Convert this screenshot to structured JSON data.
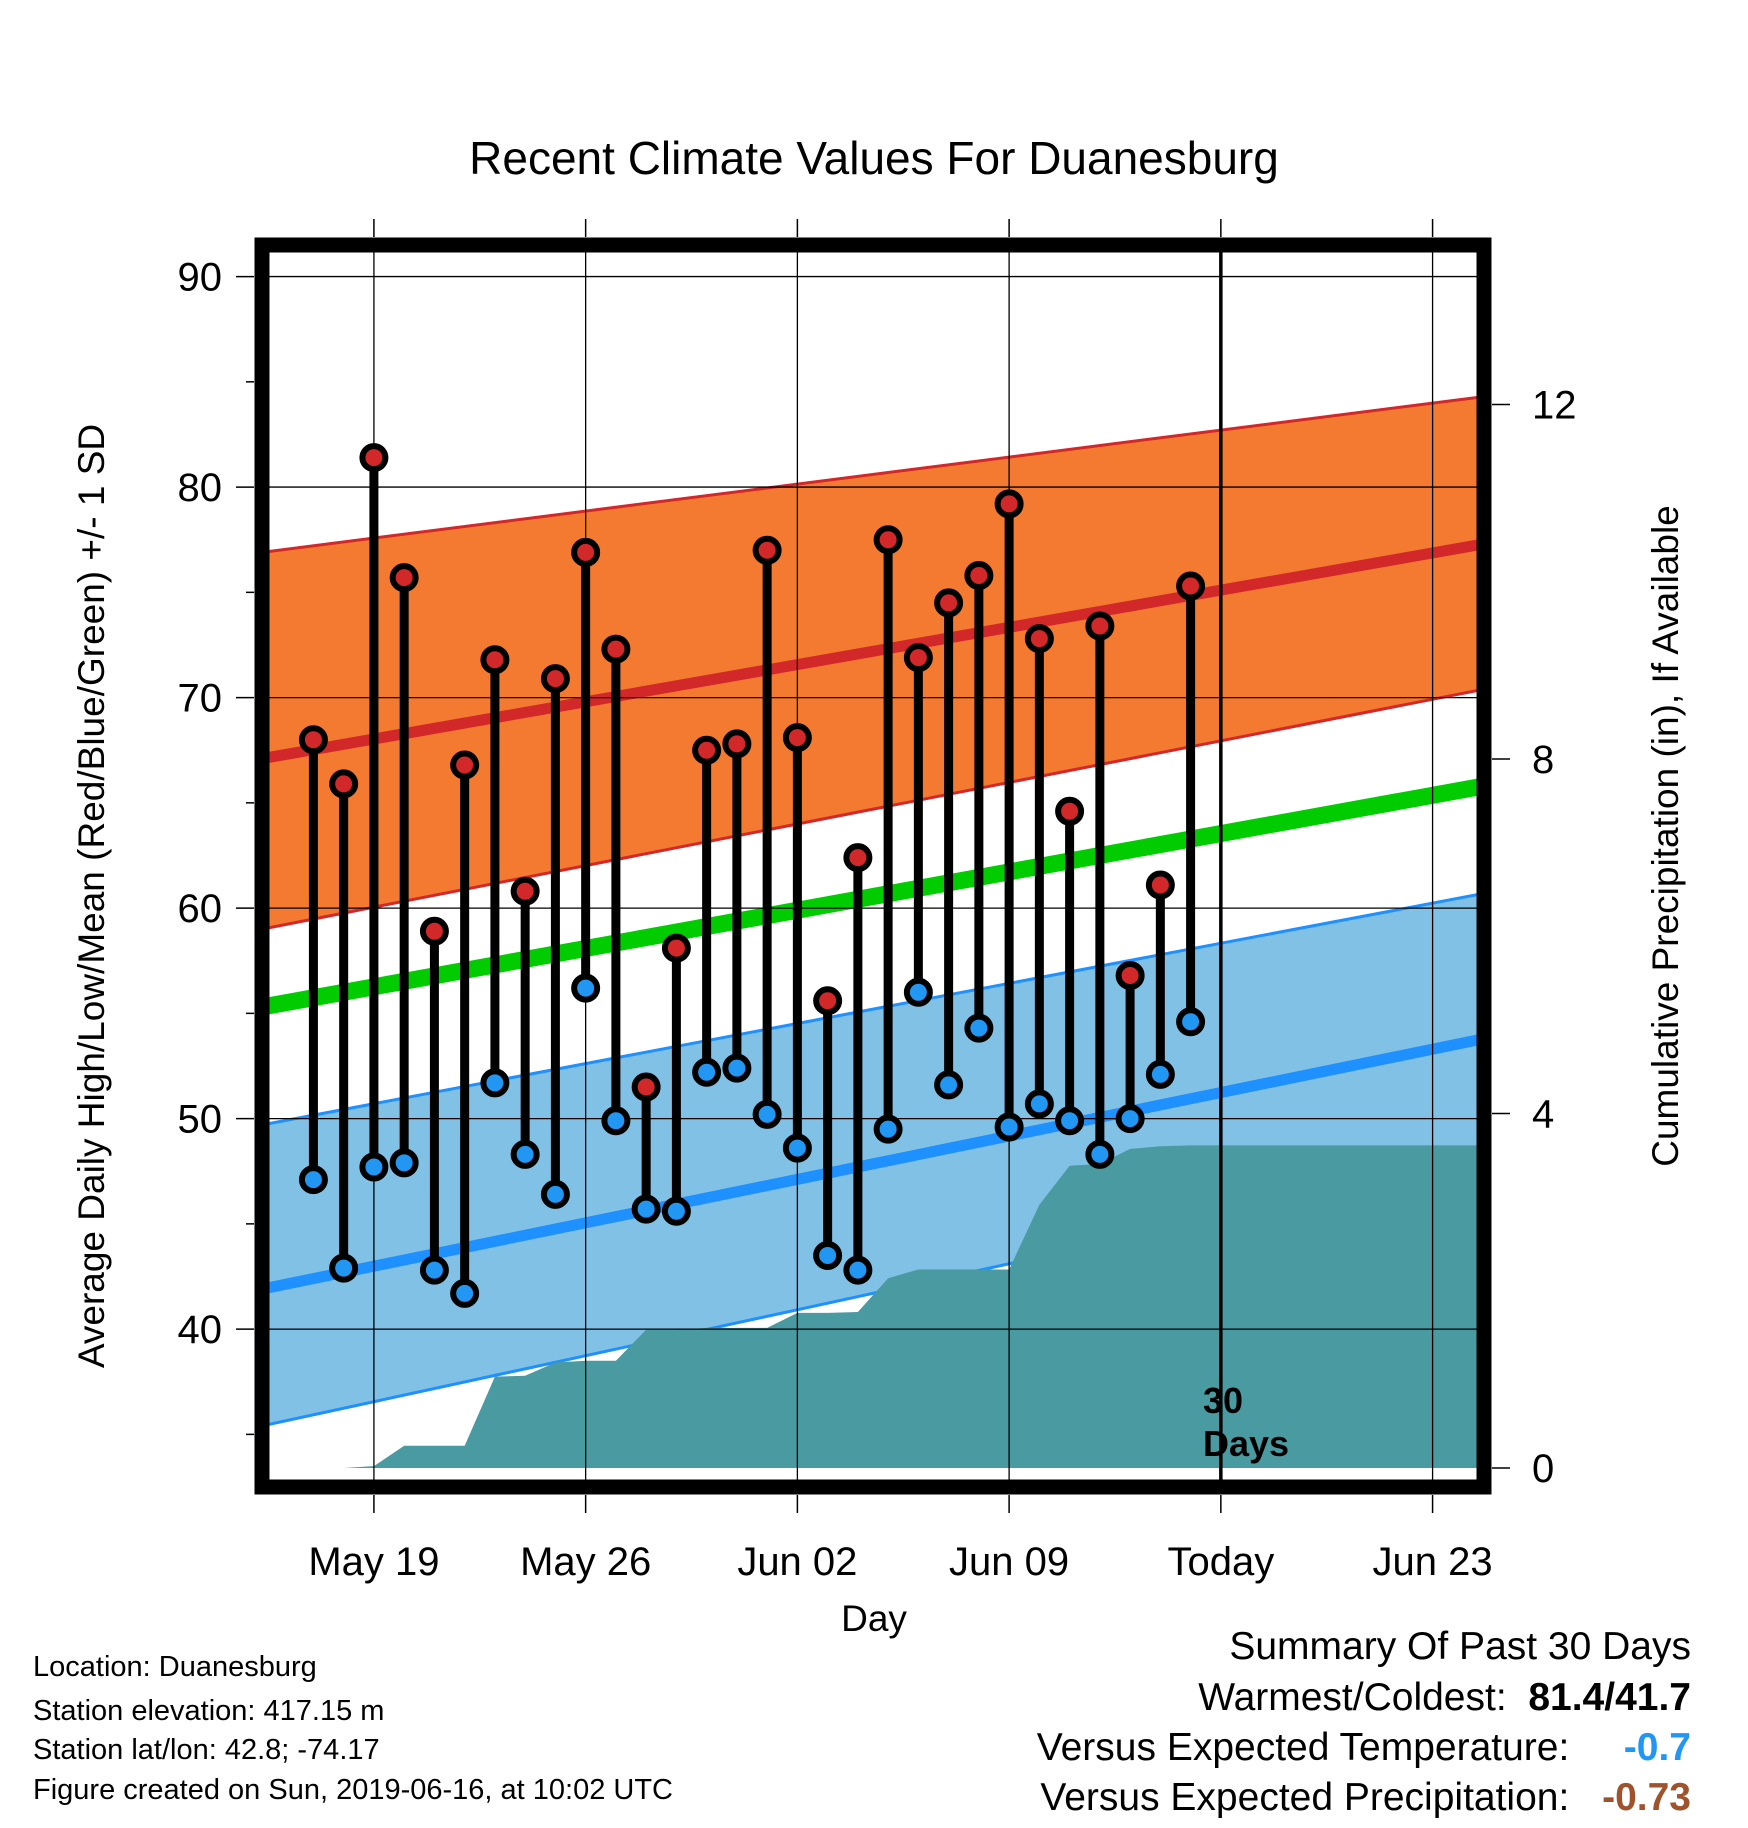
{
  "title": "Recent Climate Values For Duanesburg",
  "ylabel_left": "Average Daily High/Low/Mean (Red/Blue/Green) +/- 1 SD",
  "ylabel_right": "Cumulative Precipitation (in), If Available",
  "xlabel": "Day",
  "today_marker": {
    "line1": "30",
    "line2": "Days"
  },
  "info": {
    "location": "Location: Duanesburg",
    "elevation": "Station elevation: 417.15 m",
    "latlon": "Station lat/lon: 42.8; -74.17",
    "created": "Figure created on Sun, 2019-06-16, at 10:02 UTC"
  },
  "summary": {
    "heading": "Summary Of Past 30 Days",
    "warm_cold_label": "Warmest/Coldest:",
    "warm_cold_value": "81.4/41.7",
    "temp_label": "Versus Expected Temperature:",
    "temp_value": "-0.7",
    "precip_label": "Versus Expected Precipitation:",
    "precip_value": "-0.73"
  },
  "colors": {
    "high_band": "#f47a31",
    "high_mean": "#d2282a",
    "low_band": "#82c1e6",
    "low_mean": "#1e90ff",
    "mean_line": "#00cc00",
    "precip": "#4a9aa2",
    "high_dot": "#d2282a",
    "low_dot": "#2196f3"
  },
  "chart_data": {
    "type": "line",
    "x_ticks": [
      "May 19",
      "May 26",
      "Jun 02",
      "Jun 09",
      "Today",
      "Jun 23"
    ],
    "x_tick_days": [
      19,
      26,
      33,
      40,
      47,
      54
    ],
    "x_range_days": [
      15.3,
      55.7
    ],
    "today_day": 47,
    "y_left": {
      "ticks": [
        40,
        50,
        60,
        70,
        80,
        90
      ],
      "minor_step": 5,
      "ylim": [
        32.5,
        91.5
      ]
    },
    "y_right": {
      "ticks": [
        0,
        4,
        8,
        12
      ],
      "ylim": [
        -0.215,
        13.8
      ]
    },
    "grid": true,
    "normal_high": {
      "start": [
        15.3,
        67.1
      ],
      "end": [
        55.7,
        77.3
      ]
    },
    "normal_high_band_upper": {
      "start": [
        15.3,
        76.9
      ],
      "end": [
        55.7,
        84.3
      ]
    },
    "normal_high_band_lower": {
      "start": [
        15.3,
        59.0
      ],
      "end": [
        55.7,
        70.4
      ]
    },
    "normal_mean": {
      "start": [
        15.3,
        55.3
      ],
      "end": [
        55.7,
        65.8
      ]
    },
    "normal_low": {
      "start": [
        15.3,
        41.9
      ],
      "end": [
        55.7,
        53.8
      ]
    },
    "normal_low_band_upper": {
      "start": [
        15.3,
        49.7
      ],
      "end": [
        55.7,
        60.7
      ]
    },
    "normal_low_band_lower": {
      "start": [
        15.3,
        35.4
      ],
      "end": [
        55.7,
        48.0
      ]
    },
    "observed": [
      {
        "day": 17,
        "high": 68.0,
        "low": 47.1
      },
      {
        "day": 18,
        "high": 65.9,
        "low": 42.9
      },
      {
        "day": 19,
        "high": 81.4,
        "low": 47.7
      },
      {
        "day": 20,
        "high": 75.7,
        "low": 47.9
      },
      {
        "day": 21,
        "high": 58.9,
        "low": 42.8
      },
      {
        "day": 22,
        "high": 66.8,
        "low": 41.7
      },
      {
        "day": 23,
        "high": 71.8,
        "low": 51.7
      },
      {
        "day": 24,
        "high": 60.8,
        "low": 48.3
      },
      {
        "day": 25,
        "high": 70.9,
        "low": 46.4
      },
      {
        "day": 26,
        "high": 76.9,
        "low": 56.2
      },
      {
        "day": 27,
        "high": 72.3,
        "low": 49.9
      },
      {
        "day": 28,
        "high": 51.5,
        "low": 45.7
      },
      {
        "day": 29,
        "high": 58.1,
        "low": 45.6
      },
      {
        "day": 30,
        "high": 67.5,
        "low": 52.2
      },
      {
        "day": 31,
        "high": 67.8,
        "low": 52.4
      },
      {
        "day": 32,
        "high": 77.0,
        "low": 50.2
      },
      {
        "day": 33,
        "high": 68.1,
        "low": 48.6
      },
      {
        "day": 34,
        "high": 55.6,
        "low": 43.5
      },
      {
        "day": 35,
        "high": 62.4,
        "low": 42.8
      },
      {
        "day": 36,
        "high": 77.5,
        "low": 49.5
      },
      {
        "day": 37,
        "high": 71.9,
        "low": 56.0
      },
      {
        "day": 38,
        "high": 74.5,
        "low": 51.6
      },
      {
        "day": 39,
        "high": 75.8,
        "low": 54.3
      },
      {
        "day": 40,
        "high": 79.2,
        "low": 49.6
      },
      {
        "day": 41,
        "high": 72.8,
        "low": 50.7
      },
      {
        "day": 42,
        "high": 64.6,
        "low": 49.9
      },
      {
        "day": 43,
        "high": 73.4,
        "low": 48.3
      },
      {
        "day": 44,
        "high": 56.8,
        "low": 50.0
      },
      {
        "day": 45,
        "high": 61.1,
        "low": 52.1
      },
      {
        "day": 46,
        "high": 75.3,
        "low": 54.6
      }
    ],
    "cumulative_precip": [
      {
        "day": 18,
        "value": 0.0
      },
      {
        "day": 19,
        "value": 0.02
      },
      {
        "day": 20,
        "value": 0.25
      },
      {
        "day": 21,
        "value": 0.25
      },
      {
        "day": 22,
        "value": 0.25
      },
      {
        "day": 23,
        "value": 1.03
      },
      {
        "day": 24,
        "value": 1.04
      },
      {
        "day": 25,
        "value": 1.19
      },
      {
        "day": 26,
        "value": 1.21
      },
      {
        "day": 27,
        "value": 1.21
      },
      {
        "day": 28,
        "value": 1.56
      },
      {
        "day": 29,
        "value": 1.56
      },
      {
        "day": 30,
        "value": 1.58
      },
      {
        "day": 31,
        "value": 1.58
      },
      {
        "day": 32,
        "value": 1.58
      },
      {
        "day": 33,
        "value": 1.75
      },
      {
        "day": 34,
        "value": 1.75
      },
      {
        "day": 35,
        "value": 1.76
      },
      {
        "day": 36,
        "value": 2.14
      },
      {
        "day": 37,
        "value": 2.24
      },
      {
        "day": 38,
        "value": 2.24
      },
      {
        "day": 39,
        "value": 2.24
      },
      {
        "day": 40,
        "value": 2.24
      },
      {
        "day": 41,
        "value": 2.97
      },
      {
        "day": 42,
        "value": 3.41
      },
      {
        "day": 43,
        "value": 3.43
      },
      {
        "day": 44,
        "value": 3.6
      },
      {
        "day": 45,
        "value": 3.63
      },
      {
        "day": 46,
        "value": 3.64
      },
      {
        "day": 47,
        "value": 3.64
      },
      {
        "day": 55.7,
        "value": 3.64
      }
    ]
  }
}
